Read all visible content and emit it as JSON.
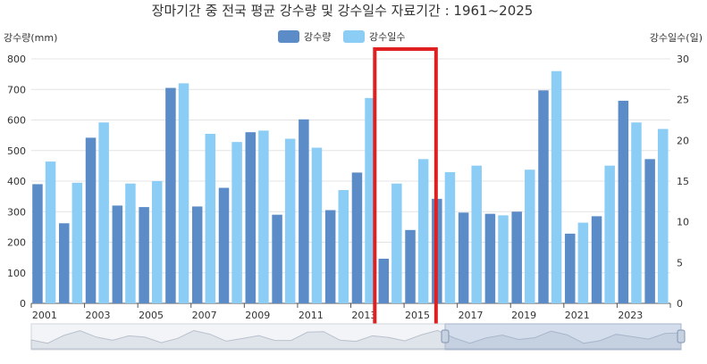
{
  "chart_data": {
    "type": "bar",
    "title": "장마기간 중 전국 평균 강수량 및 강수일수 자료기간 : 1961~2025",
    "ylabel_left": "강수량(mm)",
    "ylabel_right": "강수일수(일)",
    "ylim_left": [
      0,
      800
    ],
    "ylim_right": [
      0,
      30
    ],
    "yticks_left": [
      "0",
      "100",
      "200",
      "300",
      "400",
      "500",
      "600",
      "700",
      "800"
    ],
    "yticks_right": [
      "0",
      "5",
      "10",
      "15",
      "20",
      "25",
      "30"
    ],
    "categories": [
      "2001",
      "2002",
      "2003",
      "2004",
      "2005",
      "2006",
      "2007",
      "2008",
      "2009",
      "2010",
      "2011",
      "2012",
      "2013",
      "2014",
      "2015",
      "2016",
      "2017",
      "2018",
      "2019",
      "2020",
      "2021",
      "2022",
      "2023",
      "2024"
    ],
    "xtick_labels": [
      "2001",
      "2003",
      "2005",
      "2007",
      "2009",
      "2011",
      "2013",
      "2015",
      "2017",
      "2019",
      "2021",
      "2023"
    ],
    "grid": true,
    "legend_position": "top-center",
    "series": [
      {
        "name": "강수량",
        "axis": "left",
        "color": "#5b8cc8",
        "values": [
          390,
          262,
          542,
          320,
          315,
          705,
          317,
          378,
          560,
          290,
          602,
          305,
          428,
          146,
          240,
          342,
          297,
          293,
          300,
          697,
          228,
          285,
          663,
          472
        ]
      },
      {
        "name": "강수일수",
        "axis": "right",
        "color": "#8ccdf5",
        "values": [
          17.4,
          14.8,
          22.2,
          14.7,
          15.0,
          27.0,
          20.8,
          19.8,
          21.2,
          20.2,
          19.1,
          13.9,
          25.2,
          14.7,
          17.7,
          16.1,
          16.9,
          10.8,
          16.4,
          28.5,
          9.9,
          16.9,
          22.2,
          21.4
        ]
      }
    ],
    "highlight": {
      "color": "#e02020",
      "from_category": "2014",
      "to_category": "2015"
    }
  }
}
